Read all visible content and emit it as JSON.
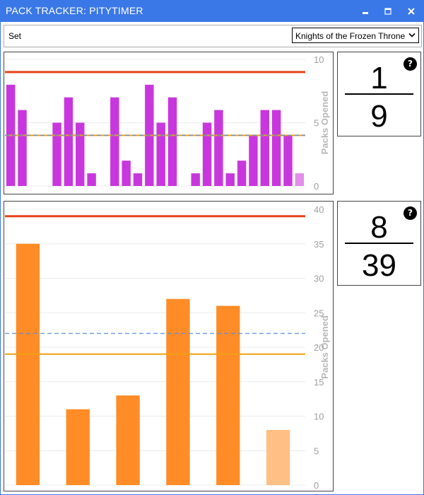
{
  "window": {
    "title": "PACK TRACKER: PITYTIMER"
  },
  "set_selector": {
    "label": "Set",
    "selected": "Knights of the Frozen Throne"
  },
  "colors": {
    "accent": "#3b78e7",
    "epic_bar": "#c837dd",
    "epic_bar_current": "#e08ee9",
    "legendary_bar": "#ff8c26",
    "legendary_bar_current": "#ffbf85",
    "pity_line": "#e8431a",
    "average_line": "#f0a010",
    "expected_line": "#5b8fe0"
  },
  "epic_panel": {
    "fraction_numerator": "1",
    "fraction_denominator": "9",
    "help_icon": "question-icon"
  },
  "legendary_panel": {
    "fraction_numerator": "8",
    "fraction_denominator": "39",
    "help_icon": "question-icon"
  },
  "chart_data": [
    {
      "type": "bar",
      "ylabel": "Packs Opened",
      "ylim": [
        0,
        10
      ],
      "yticks": [
        "0",
        "5",
        "10"
      ],
      "values": [
        8,
        6,
        0,
        0,
        5,
        7,
        5,
        1,
        0,
        7,
        2,
        1,
        8,
        5,
        7,
        0,
        1,
        5,
        6,
        1,
        2,
        4,
        6,
        6,
        4,
        1
      ],
      "current_index": 25,
      "pity_line": 9,
      "average_line": 4,
      "expected_line": 4
    },
    {
      "type": "bar",
      "ylabel": "Packs Opened",
      "ylim": [
        0,
        40
      ],
      "yticks": [
        "0",
        "5",
        "10",
        "15",
        "20",
        "25",
        "30",
        "35",
        "40"
      ],
      "values": [
        35,
        11,
        13,
        27,
        26,
        8
      ],
      "current_index": 5,
      "pity_line": 39,
      "average_line": 19,
      "expected_line": 22
    }
  ]
}
